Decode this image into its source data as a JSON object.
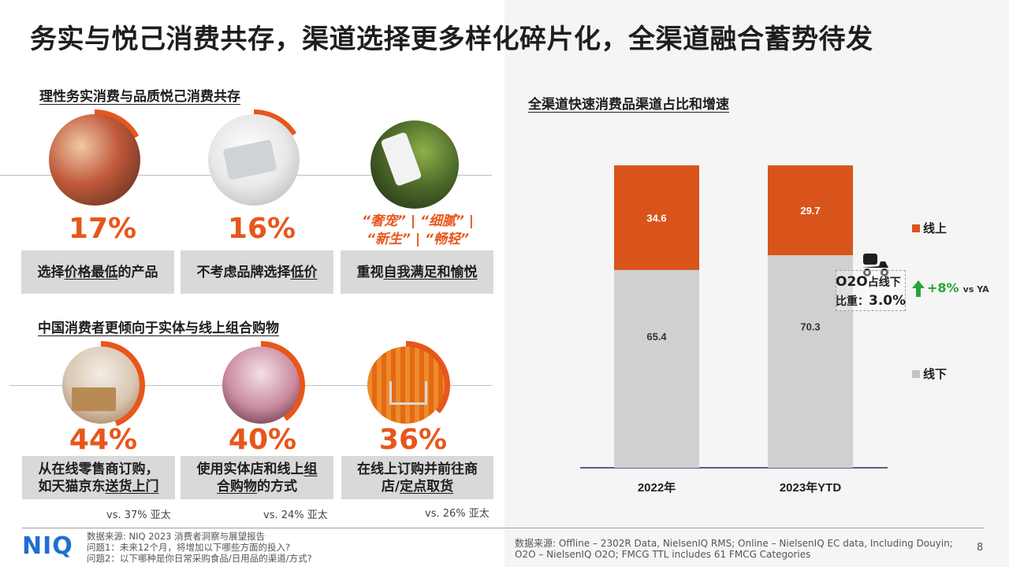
{
  "title": "务实与悦己消费共存，渠道选择更多样化碎片化，全渠道融合蓄势待发",
  "section1": {
    "title": "理性务实消费与品质悦己消费共存",
    "cards": [
      {
        "pct": "17%",
        "pct_value": 17,
        "pre": "选择",
        "u": "价格最低",
        "post": "的产品"
      },
      {
        "pct": "16%",
        "pct_value": 16,
        "pre": "不考虑品牌选择",
        "u": "低价",
        "post": ""
      },
      {
        "tags_line1": "“奢宠” | “细腻” |",
        "tags_line2": "“新生” | “畅轻”",
        "pre": "重视",
        "u": "自我满足和愉悦",
        "post": ""
      }
    ]
  },
  "section2": {
    "title": "中国消费者更倾向于实体与线上组合购物",
    "cards": [
      {
        "pct": "44%",
        "pct_value": 44,
        "line1": "从在线零售商订购，",
        "line2_pre": "如天猫京东",
        "line2_u": "送货上门",
        "line2_post": "",
        "vs": "vs. 37% 亚太"
      },
      {
        "pct": "40%",
        "pct_value": 40,
        "line1_pre": "使用实体店和线上",
        "line1_u": "组",
        "line2_u": "合购物",
        "line2_post": "的方式",
        "vs": "vs. 24% 亚太"
      },
      {
        "pct": "36%",
        "pct_value": 36,
        "line1": "在线上订购并前往商",
        "line2_pre": "店/",
        "line2_u": "定点取货",
        "line2_post": "",
        "vs": "vs. 26% 亚太"
      }
    ]
  },
  "chart_data": {
    "type": "bar",
    "stacked": true,
    "title": "全渠道快速消费品渠道占比和增速",
    "categories": [
      "2022年",
      "2023年YTD"
    ],
    "series": [
      {
        "name": "线下",
        "values": [
          65.4,
          70.3
        ],
        "color": "#d0d0d0"
      },
      {
        "name": "线上",
        "values": [
          34.6,
          29.7
        ],
        "color": "#d9541a"
      }
    ],
    "ylim": [
      0,
      100
    ],
    "legend": "right",
    "annotation": {
      "line1": "O2O",
      "line1_suffix": "占线下",
      "line2": "比重：",
      "line2_value": "3.0%",
      "growth": "+8%",
      "growth_suffix": "vs YA"
    }
  },
  "footer": {
    "logo": "NIQ",
    "source_left": [
      "数据来源: NIQ 2023 消费者洞察与展望报告",
      "问题1：未来12个月，将增加以下哪些方面的投入?",
      "问题2：以下哪种是你日常采购食品/日用品的渠道/方式?"
    ],
    "source_right": [
      "数据来源: Offline – 2302R Data, NielsenIQ RMS; Online – NielsenIQ EC data, Including Douyin;",
      "O2O – NielsenIQ O2O; FMCG TTL includes 61 FMCG Categories"
    ],
    "page": "8"
  },
  "colors": {
    "accent": "#e8561b",
    "online": "#d9541a",
    "offline": "#d0d0d0",
    "growth": "#2aa33b"
  }
}
